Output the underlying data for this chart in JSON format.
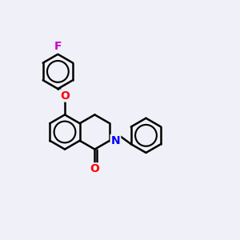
{
  "background_color": "#f0f0f8",
  "bond_color": "#000000",
  "atom_colors": {
    "F": "#cc00cc",
    "O": "#ff0000",
    "N": "#0000ff",
    "C": "#000000"
  },
  "bond_width": 1.8,
  "figsize": [
    3.0,
    3.0
  ],
  "dpi": 100,
  "ring_r": 0.72,
  "dbo": 0.1
}
